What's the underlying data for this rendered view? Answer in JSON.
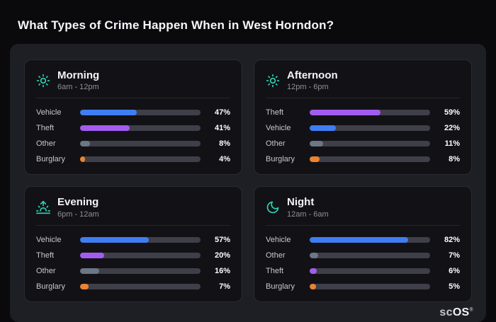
{
  "page": {
    "title": "What Types of Crime Happen When in West Horndon?"
  },
  "brand": {
    "prefix": "sc",
    "suffix": "OS",
    "mark": "®"
  },
  "colors": {
    "vehicle": "#3f7ef2",
    "theft": "#a35cf0",
    "other": "#6b7686",
    "burglary": "#ec8330",
    "icon_teal": "#2fd3b5",
    "track": "#3e3f48",
    "panel_bg": "#1e1f24",
    "card_bg": "#121216",
    "page_bg": "#0a0a0d"
  },
  "cards": [
    {
      "id": "morning",
      "icon": "sun-icon",
      "title": "Morning",
      "subtitle": "6am - 12pm",
      "rows": [
        {
          "label": "Vehicle",
          "value": 47,
          "pct": "47%",
          "color_key": "vehicle"
        },
        {
          "label": "Theft",
          "value": 41,
          "pct": "41%",
          "color_key": "theft"
        },
        {
          "label": "Other",
          "value": 8,
          "pct": "8%",
          "color_key": "other"
        },
        {
          "label": "Burglary",
          "value": 4,
          "pct": "4%",
          "color_key": "burglary"
        }
      ]
    },
    {
      "id": "afternoon",
      "icon": "sun-icon",
      "title": "Afternoon",
      "subtitle": "12pm - 6pm",
      "rows": [
        {
          "label": "Theft",
          "value": 59,
          "pct": "59%",
          "color_key": "theft"
        },
        {
          "label": "Vehicle",
          "value": 22,
          "pct": "22%",
          "color_key": "vehicle"
        },
        {
          "label": "Other",
          "value": 11,
          "pct": "11%",
          "color_key": "other"
        },
        {
          "label": "Burglary",
          "value": 8,
          "pct": "8%",
          "color_key": "burglary"
        }
      ]
    },
    {
      "id": "evening",
      "icon": "sunset-icon",
      "title": "Evening",
      "subtitle": "6pm - 12am",
      "rows": [
        {
          "label": "Vehicle",
          "value": 57,
          "pct": "57%",
          "color_key": "vehicle"
        },
        {
          "label": "Theft",
          "value": 20,
          "pct": "20%",
          "color_key": "theft"
        },
        {
          "label": "Other",
          "value": 16,
          "pct": "16%",
          "color_key": "other"
        },
        {
          "label": "Burglary",
          "value": 7,
          "pct": "7%",
          "color_key": "burglary"
        }
      ]
    },
    {
      "id": "night",
      "icon": "moon-icon",
      "title": "Night",
      "subtitle": "12am - 6am",
      "rows": [
        {
          "label": "Vehicle",
          "value": 82,
          "pct": "82%",
          "color_key": "vehicle"
        },
        {
          "label": "Other",
          "value": 7,
          "pct": "7%",
          "color_key": "other"
        },
        {
          "label": "Theft",
          "value": 6,
          "pct": "6%",
          "color_key": "theft"
        },
        {
          "label": "Burglary",
          "value": 5,
          "pct": "5%",
          "color_key": "burglary"
        }
      ]
    }
  ],
  "chart_data": [
    {
      "type": "bar",
      "title": "Morning",
      "subtitle": "6am - 12pm",
      "orientation": "horizontal",
      "categories": [
        "Vehicle",
        "Theft",
        "Other",
        "Burglary"
      ],
      "values": [
        47,
        41,
        8,
        4
      ],
      "unit": "%",
      "xlim": [
        0,
        100
      ],
      "grid": false,
      "legend": false
    },
    {
      "type": "bar",
      "title": "Afternoon",
      "subtitle": "12pm - 6pm",
      "orientation": "horizontal",
      "categories": [
        "Theft",
        "Vehicle",
        "Other",
        "Burglary"
      ],
      "values": [
        59,
        22,
        11,
        8
      ],
      "unit": "%",
      "xlim": [
        0,
        100
      ],
      "grid": false,
      "legend": false
    },
    {
      "type": "bar",
      "title": "Evening",
      "subtitle": "6pm - 12am",
      "orientation": "horizontal",
      "categories": [
        "Vehicle",
        "Theft",
        "Other",
        "Burglary"
      ],
      "values": [
        57,
        20,
        16,
        7
      ],
      "unit": "%",
      "xlim": [
        0,
        100
      ],
      "grid": false,
      "legend": false
    },
    {
      "type": "bar",
      "title": "Night",
      "subtitle": "12am - 6am",
      "orientation": "horizontal",
      "categories": [
        "Vehicle",
        "Other",
        "Theft",
        "Burglary"
      ],
      "values": [
        82,
        7,
        6,
        5
      ],
      "unit": "%",
      "xlim": [
        0,
        100
      ],
      "grid": false,
      "legend": false
    }
  ]
}
